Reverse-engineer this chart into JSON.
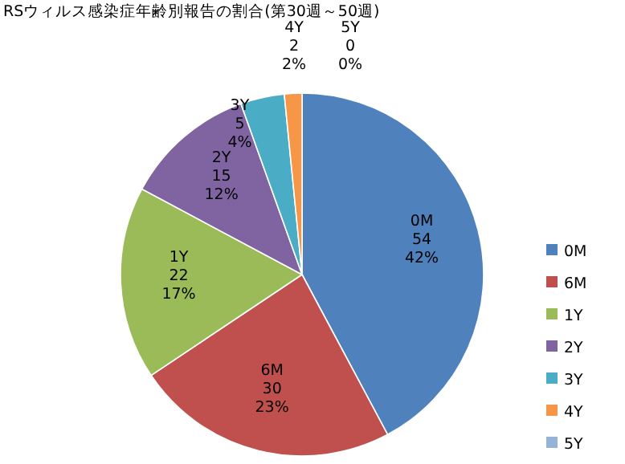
{
  "chart_data": {
    "type": "pie",
    "title": "RSウィルス感染症年齢別報告の割合(第30週～50週)",
    "categories": [
      "0M",
      "6M",
      "1Y",
      "2Y",
      "3Y",
      "4Y",
      "5Y"
    ],
    "values": [
      54,
      30,
      22,
      15,
      5,
      2,
      0
    ],
    "value_labels": [
      "54\n42%",
      "30\n23%",
      "22\n17%",
      "15\n12%",
      "5\n4%",
      "2\n2%",
      "0\n0%"
    ],
    "colors": [
      "#4f81bd",
      "#c0504d",
      "#9bbb59",
      "#8064a2",
      "#4bacc6",
      "#f79646",
      "#95b3d7"
    ],
    "legend": "right"
  }
}
